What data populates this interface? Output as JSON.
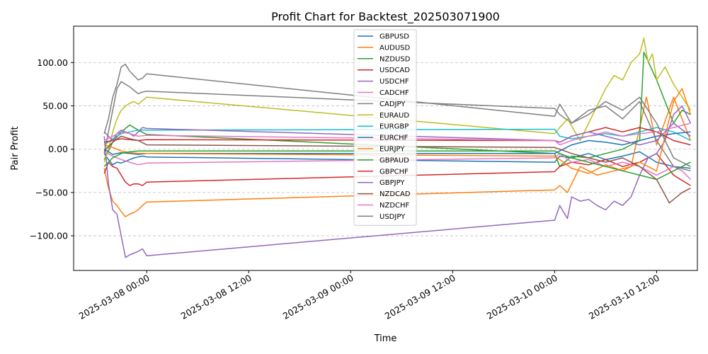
{
  "chart_data": {
    "type": "line",
    "title": "Profit Chart for Backtest_202503071900",
    "xlabel": "Time",
    "ylabel": "Pair Profit",
    "x_ticks": [
      {
        "label": "2025-03-08 00:00",
        "hours": 0
      },
      {
        "label": "2025-03-08 12:00",
        "hours": 12
      },
      {
        "label": "2025-03-09 00:00",
        "hours": 24
      },
      {
        "label": "2025-03-09 12:00",
        "hours": 36
      },
      {
        "label": "2025-03-10 00:00",
        "hours": 48
      },
      {
        "label": "2025-03-10 12:00",
        "hours": 60
      }
    ],
    "xlim_hours": [
      -8.6,
      64.8
    ],
    "y_ticks": [
      {
        "label": "100.00",
        "value": 100
      },
      {
        "label": "50.00",
        "value": 50
      },
      {
        "label": "0.00",
        "value": 0
      },
      {
        "label": "−50.00",
        "value": -50
      },
      {
        "label": "−100.00",
        "value": -100
      }
    ],
    "ylim": [
      -140,
      142
    ],
    "grid": "y-dashed",
    "legend_position": "top-center",
    "series": [
      {
        "name": "GBPUSD",
        "color": "#1f77b4",
        "x": [
          -5,
          -4.5,
          -4,
          -3.5,
          -3,
          -2.5,
          -2,
          -1.5,
          -1,
          -0.5,
          0,
          48,
          48.6,
          50,
          52,
          54,
          56,
          58,
          60,
          62,
          64
        ],
        "y": [
          -5,
          -12,
          -18,
          -15,
          -16,
          -14,
          -12,
          -10,
          -9,
          -8,
          -9,
          -15,
          -8,
          -10,
          -5,
          -12,
          -8,
          -3,
          -15,
          -20,
          -22
        ]
      },
      {
        "name": "AUDUSD",
        "color": "#ff7f0e",
        "x": [
          -5,
          -4.5,
          -4,
          -3.5,
          -3,
          -2.5,
          -2,
          -1.5,
          -1,
          -0.5,
          0,
          48,
          48.6,
          49.5,
          51,
          53,
          55,
          57,
          58.8,
          60,
          62,
          64
        ],
        "y": [
          -22,
          -45,
          -60,
          -65,
          -72,
          -78,
          -75,
          -73,
          -70,
          -65,
          -61,
          -47,
          -42,
          -50,
          -20,
          -30,
          -25,
          -20,
          60,
          5,
          60,
          10
        ]
      },
      {
        "name": "NZDUSD",
        "color": "#2ca02c",
        "x": [
          -5,
          -4,
          -3,
          -2,
          -1,
          0,
          48,
          48.6,
          50,
          52,
          54,
          56,
          58,
          58.5,
          60,
          62,
          63,
          64
        ],
        "y": [
          -12,
          8,
          20,
          28,
          22,
          17,
          -5,
          -20,
          -8,
          -10,
          -5,
          0,
          10,
          112,
          80,
          30,
          45,
          40
        ]
      },
      {
        "name": "USDCAD",
        "color": "#d62728",
        "x": [
          -5,
          -4.5,
          -4,
          -3.5,
          -3,
          -2.5,
          -2,
          -1.5,
          -1,
          -0.5,
          0,
          48,
          48.6,
          50,
          52,
          54,
          56,
          58,
          60,
          62,
          64
        ],
        "y": [
          -28,
          -15,
          -20,
          -22,
          -30,
          -38,
          -42,
          -40,
          -40,
          -42,
          -38,
          -26,
          -20,
          -15,
          -18,
          -12,
          -20,
          -15,
          -5,
          -30,
          -42
        ]
      },
      {
        "name": "USDCHF",
        "color": "#9467bd",
        "x": [
          -5,
          -4.5,
          -4,
          -3.5,
          -3,
          -2.5,
          -2,
          -1.5,
          -1,
          -0.5,
          0,
          48,
          48.6,
          49.5,
          50,
          51,
          52,
          53,
          54,
          55,
          56,
          57,
          58,
          59,
          60,
          61,
          62,
          63,
          64
        ],
        "y": [
          15,
          -40,
          -70,
          -75,
          -100,
          -125,
          -122,
          -120,
          -118,
          -115,
          -123,
          -82,
          -65,
          -80,
          -55,
          -60,
          -58,
          -65,
          -70,
          -60,
          -65,
          -55,
          -30,
          -10,
          -5,
          10,
          40,
          50,
          30
        ]
      },
      {
        "name": "CADCHF",
        "color": "#e377c2",
        "x": [
          -5,
          -4,
          -3,
          -2,
          -1,
          0,
          48,
          48.6,
          50,
          52,
          54,
          56,
          58,
          60,
          62,
          63,
          64
        ],
        "y": [
          -3,
          -8,
          -12,
          -15,
          -18,
          -16,
          -10,
          -5,
          -15,
          -12,
          -20,
          -15,
          -20,
          -30,
          -20,
          -25,
          -35
        ]
      },
      {
        "name": "CADJPY",
        "color": "#7f7f7f",
        "x": [
          -5,
          -4.5,
          -4,
          -3.5,
          -3,
          -2.5,
          -2,
          -1.5,
          -1,
          -0.5,
          0,
          48,
          48.6,
          50,
          52,
          54,
          56,
          58,
          60,
          62,
          64
        ],
        "y": [
          -5,
          20,
          45,
          70,
          78,
          75,
          72,
          68,
          64,
          66,
          67,
          47,
          40,
          30,
          45,
          50,
          35,
          55,
          10,
          -20,
          -25
        ]
      },
      {
        "name": "EURAUD",
        "color": "#bcbd22",
        "x": [
          -5,
          -4.5,
          -4,
          -3.5,
          -3,
          -2.5,
          -2,
          -1.5,
          -1,
          -0.5,
          0,
          48,
          48.6,
          49.5,
          51,
          52,
          53,
          54,
          55,
          56,
          57,
          58,
          58.5,
          59,
          59.5,
          60,
          61,
          62,
          63,
          64
        ],
        "y": [
          -15,
          0,
          20,
          35,
          45,
          50,
          53,
          55,
          52,
          56,
          60,
          18,
          25,
          35,
          10,
          30,
          50,
          70,
          85,
          80,
          100,
          110,
          128,
          100,
          110,
          80,
          95,
          75,
          60,
          45
        ]
      },
      {
        "name": "EURGBP",
        "color": "#17becf",
        "x": [
          -5,
          -4,
          -3,
          -2,
          -1,
          0,
          48,
          48.6,
          50,
          52,
          54,
          56,
          58,
          60,
          62,
          64
        ],
        "y": [
          5,
          12,
          18,
          20,
          22,
          22,
          23,
          15,
          12,
          15,
          18,
          15,
          20,
          25,
          20,
          10
        ]
      },
      {
        "name": "EURCHF",
        "color": "#1f77b4",
        "x": [
          -5,
          -4,
          -3,
          -2,
          -1,
          0,
          48,
          48.6,
          50,
          52,
          54,
          56,
          58,
          60,
          62,
          64
        ],
        "y": [
          0,
          -6,
          -4,
          -5,
          -6,
          -5,
          -5,
          -2,
          5,
          10,
          8,
          5,
          10,
          15,
          18,
          20
        ]
      },
      {
        "name": "EURJPY",
        "color": "#ff7f0e",
        "x": [
          -5,
          -4,
          -3,
          -2,
          -1,
          0,
          48,
          48.6,
          50,
          52,
          54,
          56,
          58,
          60,
          62,
          63,
          64
        ],
        "y": [
          5,
          2,
          -2,
          -4,
          -5,
          -5,
          -8,
          -12,
          -22,
          -28,
          -18,
          -25,
          -15,
          -25,
          55,
          70,
          40
        ]
      },
      {
        "name": "GBPAUD",
        "color": "#2ca02c",
        "x": [
          -5,
          -4,
          -3,
          -2,
          -1,
          0,
          48,
          48.6,
          50,
          52,
          54,
          56,
          58,
          60,
          62,
          64
        ],
        "y": [
          -20,
          -10,
          -5,
          -3,
          -2,
          -2,
          -2,
          -5,
          -10,
          -15,
          -20,
          -25,
          -30,
          -35,
          -25,
          -15
        ]
      },
      {
        "name": "GBPCHF",
        "color": "#d62728",
        "x": [
          -5,
          -4,
          -3,
          -2,
          -1,
          0,
          48,
          48.6,
          50,
          52,
          54,
          56,
          58,
          60,
          62,
          64
        ],
        "y": [
          8,
          10,
          12,
          11,
          10,
          11,
          10,
          8,
          15,
          20,
          25,
          20,
          25,
          20,
          10,
          5
        ]
      },
      {
        "name": "GBPJPY",
        "color": "#9467bd",
        "x": [
          -5,
          -4.5,
          -4,
          -3.5,
          -3,
          -2.5,
          -2,
          -1.5,
          -1,
          -0.5,
          0,
          48,
          48.6,
          50,
          52,
          54,
          56,
          58,
          60,
          62,
          64
        ],
        "y": [
          20,
          15,
          10,
          18,
          22,
          20,
          18,
          15,
          20,
          25,
          24,
          10,
          8,
          15,
          20,
          15,
          10,
          5,
          10,
          30,
          15
        ]
      },
      {
        "name": "NZDCAD",
        "color": "#8c564b",
        "x": [
          -5,
          -4,
          -3,
          -2,
          -1,
          0,
          48,
          48.6,
          50,
          52,
          54,
          56,
          58,
          60,
          61.5,
          63,
          64
        ],
        "y": [
          -2,
          8,
          15,
          12,
          10,
          5,
          2,
          0,
          -5,
          -10,
          -15,
          -10,
          -20,
          -35,
          -62,
          -50,
          -45
        ]
      },
      {
        "name": "NZDCHF",
        "color": "#e377c2",
        "x": [
          -5,
          -4,
          -3,
          -2,
          -1,
          0,
          48,
          48.6,
          50,
          52,
          54,
          56,
          58,
          60,
          62,
          64
        ],
        "y": [
          10,
          15,
          20,
          18,
          15,
          16,
          10,
          5,
          10,
          15,
          20,
          15,
          18,
          20,
          25,
          30
        ]
      },
      {
        "name": "USDJPY",
        "color": "#7f7f7f",
        "x": [
          -5,
          -4.5,
          -4,
          -3.5,
          -3,
          -2.5,
          -2,
          -1.5,
          -1,
          -0.5,
          0,
          48,
          48.6,
          50,
          52,
          54,
          56,
          58,
          60,
          62,
          64
        ],
        "y": [
          18,
          35,
          60,
          75,
          95,
          98,
          90,
          85,
          80,
          82,
          87,
          38,
          52,
          30,
          40,
          55,
          45,
          60,
          30,
          -10,
          -20
        ]
      }
    ]
  }
}
